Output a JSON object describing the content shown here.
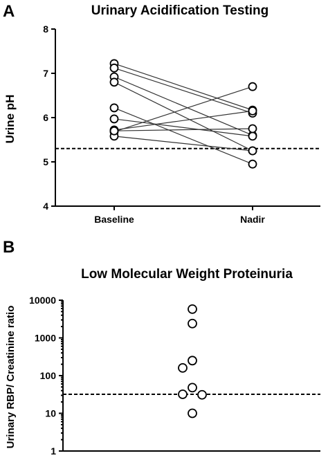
{
  "chart_data": [
    {
      "type": "line",
      "panel_label": "A",
      "title": "Urinary Acidification Testing",
      "xlabel": "",
      "ylabel": "Urine pH",
      "categories": [
        "Baseline",
        "Nadir"
      ],
      "ylim": [
        4,
        8
      ],
      "yticks": [
        "4",
        "5",
        "6",
        "7",
        "8"
      ],
      "reference_line": 5.3,
      "pairs": [
        {
          "baseline": 7.22,
          "nadir": 6.17
        },
        {
          "baseline": 7.12,
          "nadir": 6.1
        },
        {
          "baseline": 6.92,
          "nadir": 5.6
        },
        {
          "baseline": 6.8,
          "nadir": 5.25
        },
        {
          "baseline": 6.22,
          "nadir": 4.95
        },
        {
          "baseline": 5.97,
          "nadir": 5.58
        },
        {
          "baseline": 5.72,
          "nadir": 6.15
        },
        {
          "baseline": 5.68,
          "nadir": 6.7
        },
        {
          "baseline": 5.58,
          "nadir": 5.25
        },
        {
          "baseline": 5.7,
          "nadir": 5.75
        }
      ]
    },
    {
      "type": "scatter",
      "panel_label": "B",
      "title": "Low Molecular Weight  Proteinuria",
      "xlabel": "",
      "ylabel": "Urinary RBP/ Creatinine ratio",
      "yscale": "log",
      "ylim": [
        1,
        10000
      ],
      "yticks": [
        "1",
        "10",
        "100",
        "1000",
        "10000"
      ],
      "reference_line": 32,
      "values": [
        5800,
        2400,
        250,
        160,
        48,
        32,
        31,
        10
      ]
    }
  ]
}
